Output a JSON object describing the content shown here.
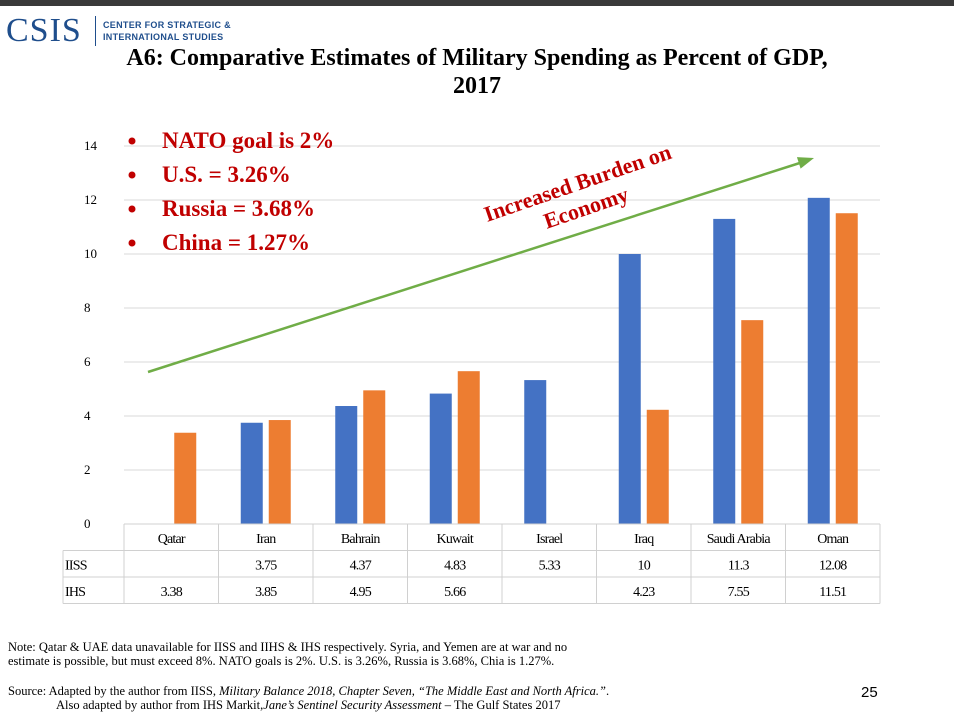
{
  "logo": {
    "main": "CSIS",
    "sub_line1": "CENTER FOR STRATEGIC &",
    "sub_line2": "INTERNATIONAL STUDIES"
  },
  "title_line1": "A6: Comparative Estimates of Military Spending as Percent of GDP,",
  "title_line2": "2017",
  "bullets": [
    "NATO goal is 2%",
    "U.S. = 3.26%",
    "Russia = 3.68%",
    "China = 1.27%"
  ],
  "annotation": {
    "line1": "Increased Burden on",
    "line2": "Economy"
  },
  "colors": {
    "iiss": "#4472C4",
    "ihs": "#ED7D31",
    "arrow": "#70AD47",
    "bullet_text": "#C00000"
  },
  "chart_data": {
    "type": "bar",
    "categories": [
      "Qatar",
      "Iran",
      "Bahrain",
      "Kuwait",
      "Israel",
      "Iraq",
      "Saudi Arabia",
      "Oman"
    ],
    "series": [
      {
        "name": "IISS",
        "values": [
          null,
          3.75,
          4.37,
          4.83,
          5.33,
          10,
          11.3,
          12.08
        ]
      },
      {
        "name": "IHS",
        "values": [
          3.38,
          3.85,
          4.95,
          5.66,
          null,
          4.23,
          7.55,
          11.51
        ]
      }
    ],
    "table_values": [
      [
        "",
        "3.75",
        "4.37",
        "4.83",
        "5.33",
        "10",
        "11.3",
        "12.08"
      ],
      [
        "3.38",
        "3.85",
        "4.95",
        "5.66",
        "",
        "4.23",
        "7.55",
        "11.51"
      ]
    ],
    "ylim": [
      0,
      14
    ],
    "yticks": [
      0,
      2,
      4,
      6,
      8,
      10,
      12,
      14
    ],
    "grid": true,
    "legend": "data table below chart"
  },
  "note": {
    "line1": "Note:  Qatar & UAE data unavailable for IISS and IIHS & IHS respectively. Syria, and Yemen are at war and no",
    "line2": "estimate is possible, but must exceed 8%. NATO goals is 2%. U.S. is 3.26%, Russia is 3.68%, Chia is 1.27%."
  },
  "source": {
    "prefix": "Source: Adapted by the author from IISS, ",
    "italic1": "Military Balance 2018, Chapter Seven, “The Middle East and North Africa.”",
    "suffix1": ".",
    "line2_prefix": "Also adapted by author from IHS Markit, ",
    "italic2": "Jane’s Sentinel Security Assessment",
    "line2_suffix": " – The Gulf States 2017"
  },
  "page_number": "25"
}
